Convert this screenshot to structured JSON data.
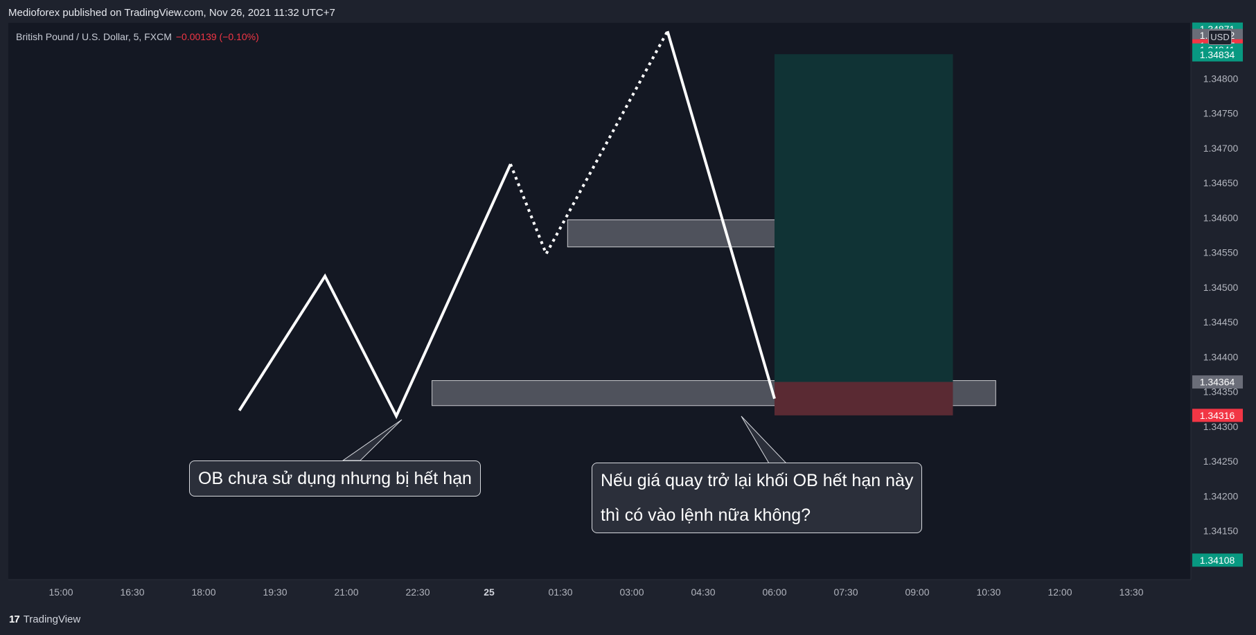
{
  "header": {
    "published": "Medioforex published on TradingView.com, Nov 26, 2021 11:32 UTC+7"
  },
  "symbol": {
    "name": "British Pound / U.S. Dollar, 5, FXCM",
    "change": "−0.00139 (−0.10%)"
  },
  "currency_badge": "USD",
  "footer": {
    "logo_mark": "17",
    "brand": "TradingView"
  },
  "callouts": {
    "left": "OB chưa sử dụng nhưng bị hết hạn",
    "right_line1": "Nếu giá quay trở lại khối OB hết hạn này",
    "right_line2": "thì có vào lệnh nữa không?"
  },
  "colors": {
    "background": "#141823",
    "line": "#ffffff",
    "profit_zone": "#103335",
    "loss_zone": "#5a2a33",
    "label_green": "#089981",
    "label_red": "#f23645",
    "label_gray": "#6a6d78",
    "ob_box": "#5a5d66"
  },
  "chart_data": {
    "type": "line",
    "y_axis": {
      "range": [
        1.3408,
        1.3488
      ],
      "ticks": [
        "1.34800",
        "1.34750",
        "1.34700",
        "1.34650",
        "1.34600",
        "1.34550",
        "1.34500",
        "1.34450",
        "1.34400",
        "1.34350",
        "1.34300",
        "1.34250",
        "1.34200",
        "1.34150"
      ]
    },
    "x_axis": {
      "ticks": [
        "15:00",
        "16:30",
        "18:00",
        "19:30",
        "21:00",
        "22:30",
        "25",
        "01:30",
        "03:00",
        "04:30",
        "06:00",
        "07:30",
        "09:00",
        "10:30",
        "12:00",
        "13:30"
      ]
    },
    "price_labels": [
      {
        "text": "1.34871",
        "value": 1.34871,
        "color": "green"
      },
      {
        "text": "1.34862",
        "value": 1.34862,
        "color": "gray"
      },
      {
        "text": "1.34847",
        "value": 1.34847,
        "color": "red"
      },
      {
        "text": "1.34841",
        "value": 1.34841,
        "color": "green"
      },
      {
        "text": "1.34834",
        "value": 1.34834,
        "color": "green"
      },
      {
        "text": "1.34364",
        "value": 1.34364,
        "color": "gray"
      },
      {
        "text": "1.34316",
        "value": 1.34316,
        "color": "red"
      },
      {
        "text": "1.34108",
        "value": 1.34108,
        "color": "green"
      }
    ],
    "series": [
      {
        "style": "solid",
        "points": [
          [
            2.5,
            1.34323
          ],
          [
            3.7,
            1.34516
          ],
          [
            4.7,
            1.34315
          ],
          [
            6.3,
            1.34677
          ]
        ]
      },
      {
        "style": "dotted",
        "points": [
          [
            6.3,
            1.34677
          ],
          [
            6.8,
            1.34548
          ],
          [
            8.5,
            1.34868
          ]
        ]
      },
      {
        "style": "solid",
        "points": [
          [
            8.5,
            1.34868
          ],
          [
            10.0,
            1.3434
          ]
        ]
      }
    ],
    "zones": [
      {
        "kind": "ob_block",
        "x": [
          7.1,
          10.3
        ],
        "y": [
          1.34558,
          1.34597
        ]
      },
      {
        "kind": "ob_block",
        "x": [
          5.2,
          13.1
        ],
        "y": [
          1.3433,
          1.34366
        ]
      },
      {
        "kind": "profit",
        "x": [
          10.0,
          12.5
        ],
        "y": [
          1.34364,
          1.34835
        ]
      },
      {
        "kind": "loss",
        "x": [
          10.0,
          12.5
        ],
        "y": [
          1.34316,
          1.34364
        ]
      }
    ],
    "crosshair": false,
    "grid": false
  }
}
